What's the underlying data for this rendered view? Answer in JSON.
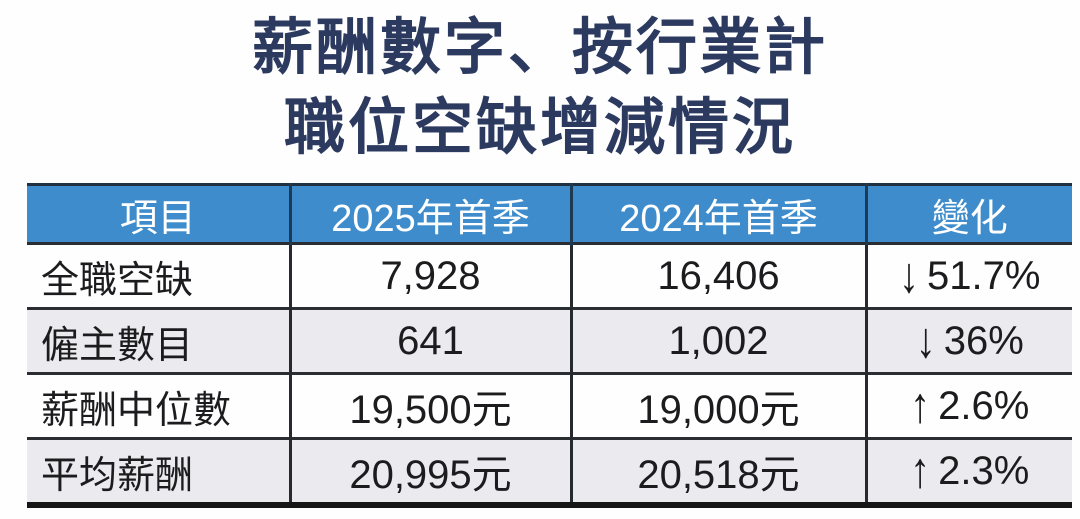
{
  "title": {
    "line1": "薪酬數字、按行業計",
    "line2": "職位空缺增減情況"
  },
  "table": {
    "headers": {
      "item": "項目",
      "q2025": "2025年首季",
      "q2024": "2024年首季",
      "change": "變化"
    },
    "rows": [
      {
        "item": "全職空缺",
        "q2025": "7,928",
        "q2024": "16,406",
        "arrow": "↓",
        "direction": "down",
        "change": "51.7%"
      },
      {
        "item": "僱主數目",
        "q2025": "641",
        "q2024": "1,002",
        "arrow": "↓",
        "direction": "down",
        "change": "36%"
      },
      {
        "item": "薪酬中位數",
        "q2025": "19,500元",
        "q2024": "19,000元",
        "arrow": "↑",
        "direction": "up",
        "change": "2.6%"
      },
      {
        "item": "平均薪酬",
        "q2025": "20,995元",
        "q2024": "20,518元",
        "arrow": "↑",
        "direction": "up",
        "change": "2.3%"
      }
    ]
  },
  "colors": {
    "header_bg": "#3e8ccb",
    "header_text": "#ffffff",
    "title_text": "#2c3a60",
    "body_text": "#1c1c1e",
    "alt_row_bg": "#eaeaef",
    "border_dark": "#26292e",
    "bottom_border": "#161616"
  },
  "chart_data": {
    "type": "table",
    "title": "薪酬數字、按行業計 職位空缺增減情況",
    "columns": [
      "項目",
      "2025年首季",
      "2024年首季",
      "變化"
    ],
    "rows": [
      [
        "全職空缺",
        "7,928",
        "16,406",
        "↓51.7%"
      ],
      [
        "僱主數目",
        "641",
        "1,002",
        "↓36%"
      ],
      [
        "薪酬中位數",
        "19,500元",
        "19,000元",
        "↑2.6%"
      ],
      [
        "平均薪酬",
        "20,995元",
        "20,518元",
        "↑2.3%"
      ]
    ],
    "numeric_rows": [
      {
        "label": "全職空缺",
        "q1_2025": 7928,
        "q1_2024": 16406,
        "change_pct": -51.7
      },
      {
        "label": "僱主數目",
        "q1_2025": 641,
        "q1_2024": 1002,
        "change_pct": -36
      },
      {
        "label": "薪酬中位數",
        "q1_2025": 19500,
        "q1_2024": 19000,
        "change_pct": 2.6
      },
      {
        "label": "平均薪酬",
        "q1_2025": 20995,
        "q1_2024": 20518,
        "change_pct": 2.3
      }
    ]
  }
}
